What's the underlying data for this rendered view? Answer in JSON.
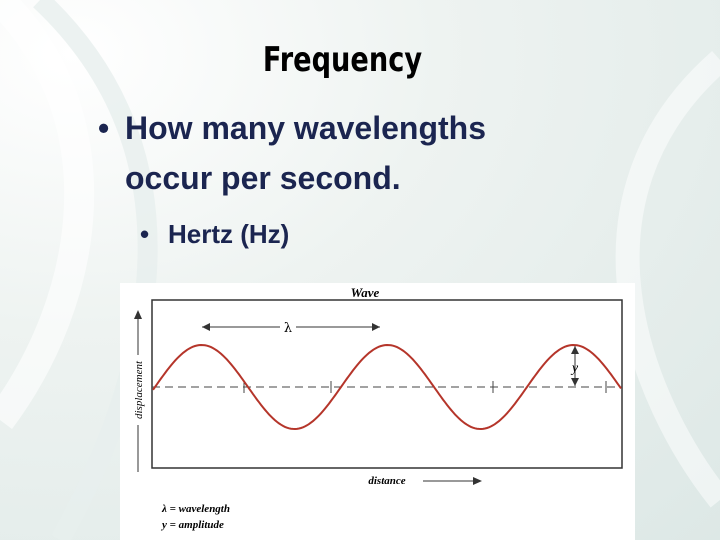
{
  "slide": {
    "title": "Frequency",
    "bullets": [
      {
        "text": "How many wavelengths occur per second.",
        "lines": [
          "How many wavelengths",
          "occur per second."
        ]
      },
      {
        "text": "Hertz (Hz)"
      }
    ],
    "figure": {
      "title": "Wave",
      "wavelength_symbol": "λ",
      "amplitude_symbol": "y",
      "y_axis_label": "displacement",
      "x_axis_label": "distance",
      "legend": [
        "λ = wavelength",
        "y = amplitude"
      ]
    }
  }
}
